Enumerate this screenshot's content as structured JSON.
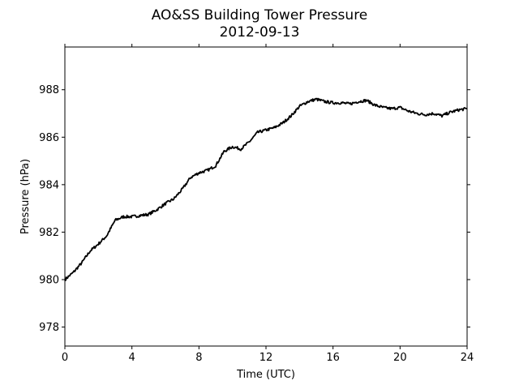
{
  "chart_data": {
    "type": "line",
    "title": "AO&SS Building Tower Pressure",
    "subtitle": "2012-09-13",
    "xlabel": "Time (UTC)",
    "ylabel": "Pressure (hPa)",
    "xlim": [
      0,
      24
    ],
    "ylim": [
      977.2,
      989.8
    ],
    "xticks": [
      0,
      4,
      8,
      12,
      16,
      20,
      24
    ],
    "yticks": [
      978,
      980,
      982,
      984,
      986,
      988
    ],
    "grid": false,
    "line_color": "#000000",
    "series": [
      {
        "x": [
          0,
          0.5,
          1,
          1.5,
          2,
          2.5,
          3,
          3.5,
          4,
          4.5,
          5,
          5.5,
          6,
          6.5,
          7,
          7.5,
          8,
          8.5,
          9,
          9.5,
          10,
          10.5,
          11,
          11.5,
          12,
          12.5,
          13,
          13.5,
          14,
          14.5,
          15,
          15.5,
          16,
          16.5,
          17,
          17.5,
          18,
          18.5,
          19,
          19.5,
          20,
          20.5,
          21,
          21.5,
          22,
          22.5,
          23,
          23.5,
          24
        ],
        "values": [
          980.0,
          980.3,
          980.7,
          981.2,
          981.5,
          981.85,
          982.5,
          982.65,
          982.65,
          982.7,
          982.75,
          982.95,
          983.2,
          983.4,
          983.8,
          984.3,
          984.5,
          984.6,
          984.8,
          985.4,
          985.6,
          985.5,
          985.8,
          986.2,
          986.3,
          986.4,
          986.6,
          986.9,
          987.3,
          987.5,
          987.6,
          987.5,
          987.45,
          987.45,
          987.4,
          987.5,
          987.55,
          987.35,
          987.25,
          987.2,
          987.25,
          987.1,
          987.0,
          986.95,
          987.0,
          986.9,
          987.05,
          987.15,
          987.2
        ]
      }
    ]
  }
}
